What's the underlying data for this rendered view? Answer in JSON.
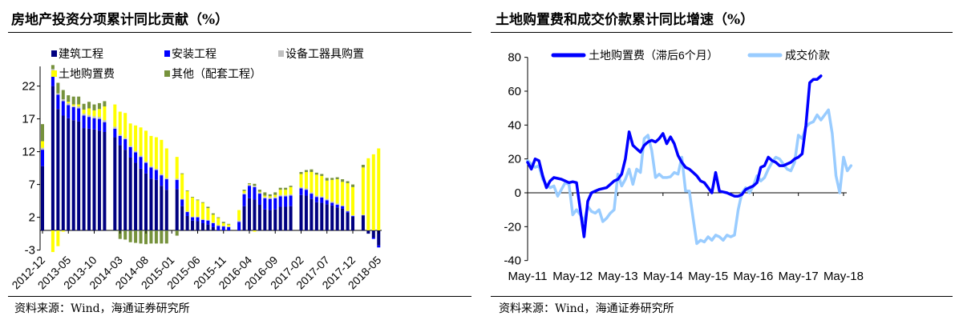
{
  "left": {
    "title": "房地产投资分项累计同比贡献（%）",
    "source": "资料来源：Wind，海通证券研究所"
  },
  "right": {
    "title": "土地购置费和成交价款累计同比增速（%）",
    "source": "资料来源：Wind，海通证券研究所"
  },
  "chart_data": [
    {
      "type": "bar",
      "stacked": true,
      "title": "房地产投资分项累计同比贡献（%）",
      "ylim": [
        -3,
        25
      ],
      "yticks": [
        -3,
        2,
        7,
        12,
        17,
        22
      ],
      "grid": false,
      "legend": "top",
      "xtick_labels": [
        "2012-12",
        "2013-05",
        "2013-10",
        "2014-03",
        "2014-08",
        "2015-01",
        "2015-06",
        "2015-11",
        "2016-04",
        "2016-09",
        "2017-02",
        "2017-07",
        "2017-12",
        "2018-05"
      ],
      "categories": [
        "2012-12",
        "2013-01",
        "2013-02",
        "2013-03",
        "2013-04",
        "2013-05",
        "2013-06",
        "2013-07",
        "2013-08",
        "2013-09",
        "2013-10",
        "2013-11",
        "2013-12",
        "2014-01",
        "2014-02",
        "2014-03",
        "2014-04",
        "2014-05",
        "2014-06",
        "2014-07",
        "2014-08",
        "2014-09",
        "2014-10",
        "2014-11",
        "2014-12",
        "2015-01",
        "2015-02",
        "2015-03",
        "2015-04",
        "2015-05",
        "2015-06",
        "2015-07",
        "2015-08",
        "2015-09",
        "2015-10",
        "2015-11",
        "2015-12",
        "2016-01",
        "2016-02",
        "2016-03",
        "2016-04",
        "2016-05",
        "2016-06",
        "2016-07",
        "2016-08",
        "2016-09",
        "2016-10",
        "2016-11",
        "2016-12",
        "2017-01",
        "2017-02",
        "2017-03",
        "2017-04",
        "2017-05",
        "2017-06",
        "2017-07",
        "2017-08",
        "2017-09",
        "2017-10",
        "2017-11",
        "2017-12",
        "2018-01",
        "2018-02",
        "2018-03",
        "2018-04",
        "2018-05"
      ],
      "series": [
        {
          "name": "建筑工程",
          "color": "#000080",
          "values": [
            9.8,
            null,
            22.0,
            18.5,
            17.5,
            17.1,
            16.8,
            16.6,
            15.6,
            15.5,
            15.4,
            15.2,
            15.0,
            null,
            14.2,
            13.0,
            12.3,
            11.1,
            10.3,
            9.4,
            8.7,
            7.9,
            7.7,
            6.8,
            6.2,
            null,
            6.3,
            3.7,
            2.2,
            1.5,
            1.4,
            1.1,
            0.9,
            0.5,
            0.0,
            0.0,
            0.0,
            null,
            0.0,
            3.7,
            4.9,
            4.7,
            3.9,
            3.2,
            3.1,
            3.2,
            3.6,
            3.6,
            3.7,
            null,
            5.4,
            5.3,
            4.8,
            4.3,
            4.2,
            4.0,
            3.8,
            3.5,
            3.3,
            2.7,
            2.1,
            null,
            2.3,
            -0.5,
            -1.1,
            -2.3
          ]
        },
        {
          "name": "安装工程",
          "color": "#0000FF",
          "values": [
            2.5,
            null,
            2.2,
            2.2,
            2.2,
            2.0,
            2.0,
            2.0,
            1.9,
            1.8,
            1.7,
            1.8,
            1.5,
            null,
            1.3,
            1.4,
            1.6,
            1.6,
            1.6,
            1.8,
            1.6,
            1.7,
            1.5,
            1.6,
            1.6,
            null,
            1.4,
            1.0,
            0.6,
            0.5,
            0.6,
            0.5,
            0.6,
            0.6,
            0.7,
            0.6,
            0.5,
            null,
            1.3,
            1.8,
            1.9,
            1.9,
            1.7,
            1.7,
            1.7,
            1.7,
            1.6,
            1.6,
            1.6,
            null,
            1.0,
            0.9,
            0.8,
            0.8,
            0.8,
            0.6,
            0.4,
            0.4,
            0.4,
            0.2,
            0.1,
            null,
            0.0,
            0.0,
            -0.2,
            -0.3
          ]
        },
        {
          "name": "设备工器具购置",
          "color": "#C0C0C0",
          "values": [
            0.3,
            null,
            0.4,
            0.2,
            0.3,
            0.3,
            0.2,
            0.3,
            0.3,
            0.3,
            0.3,
            0.3,
            0.3,
            null,
            0.3,
            0.2,
            0.2,
            0.2,
            0.2,
            0.2,
            0.2,
            0.2,
            0.2,
            0.2,
            0.2,
            null,
            0.2,
            0.1,
            0.1,
            0.1,
            0.1,
            0.1,
            0.1,
            0.1,
            0.1,
            0.1,
            0.1,
            null,
            0.2,
            0.2,
            0.2,
            0.2,
            0.2,
            0.2,
            0.2,
            0.2,
            0.2,
            0.2,
            0.2,
            null,
            0.2,
            0.2,
            0.2,
            0.2,
            0.2,
            0.2,
            0.2,
            0.2,
            0.1,
            0.1,
            0.1,
            null,
            0.1,
            0.0,
            0.0,
            0.0
          ]
        },
        {
          "name": "土地购置费",
          "color": "#FFFF00",
          "values": [
            1.0,
            null,
            -3.3,
            -2.4,
            -0.2,
            0.2,
            0.2,
            0.3,
            0.6,
            1.0,
            0.9,
            1.2,
            2.1,
            null,
            3.4,
            3.5,
            3.8,
            3.4,
            3.9,
            4.3,
            4.7,
            4.6,
            4.8,
            5.2,
            4.5,
            null,
            3.3,
            3.8,
            3.1,
            2.9,
            2.5,
            2.5,
            1.8,
            1.2,
            1.1,
            0.4,
            0.3,
            null,
            1.6,
            0.3,
            0.1,
            -0.2,
            0.1,
            0.2,
            0.2,
            0.3,
            0.8,
            0.8,
            1.1,
            null,
            2.0,
            2.5,
            3.1,
            3.2,
            3.1,
            2.8,
            3.3,
            3.7,
            3.6,
            4.2,
            4.3,
            null,
            7.2,
            11.0,
            11.6,
            12.5
          ]
        },
        {
          "name": "其他（配套工程）",
          "color": "#76923C",
          "values": [
            2.6,
            null,
            0.6,
            1.6,
            1.4,
            1.0,
            1.2,
            1.2,
            0.9,
            1.0,
            0.9,
            0.9,
            0.8,
            null,
            -0.1,
            -1.3,
            -1.4,
            -1.8,
            -1.9,
            -2.0,
            -2.1,
            -2.0,
            -2.0,
            -2.0,
            -2.0,
            null,
            -0.8,
            0.1,
            0.1,
            0.1,
            0.1,
            0.1,
            0.2,
            0.2,
            0.1,
            0.2,
            0.1,
            null,
            0.0,
            0.2,
            0.1,
            0.3,
            0.3,
            0.5,
            0.3,
            0.4,
            0.3,
            0.3,
            0.2,
            null,
            0.3,
            0.3,
            0.4,
            0.3,
            0.3,
            0.4,
            0.3,
            0.3,
            0.4,
            0.3,
            0.4,
            null,
            0.4,
            0.0,
            0.0,
            0.0
          ]
        }
      ]
    },
    {
      "type": "line",
      "title": "土地购置费和成交价款累计同比增速（%）",
      "ylim": [
        -40,
        80
      ],
      "yticks": [
        -40,
        -20,
        0,
        20,
        40,
        60,
        80
      ],
      "grid": false,
      "legend": "top",
      "x_start": "May-11",
      "x_frequency": "monthly",
      "xtick_labels": [
        "May-11",
        "May-12",
        "May-13",
        "May-14",
        "May-15",
        "May-16",
        "May-17",
        "May-18"
      ],
      "series": [
        {
          "name": "土地购置费（滞后6个月）",
          "color": "#0000FF",
          "values": [
            18,
            14,
            20,
            19,
            10,
            3,
            7,
            9,
            8.5,
            8,
            7,
            6,
            6.5,
            6,
            -10,
            -26,
            -5,
            0,
            1,
            2,
            2.5,
            3,
            5,
            7,
            8,
            11,
            20,
            36,
            28,
            26,
            24,
            28,
            30,
            31,
            30,
            32,
            35,
            29,
            33,
            29,
            22,
            18,
            15,
            14,
            12,
            10,
            7,
            6,
            3,
            0,
            12,
            1,
            0.5,
            0,
            -1,
            -2,
            -2,
            -1,
            2,
            3,
            4,
            6,
            15,
            16,
            21,
            19,
            18,
            16,
            16,
            17,
            18,
            20,
            21,
            23,
            40,
            65,
            67,
            67,
            69
          ]
        },
        {
          "name": "成交价款",
          "color": "#99CCFF",
          "values": [
            19,
            17,
            15,
            16,
            8,
            5,
            3,
            4,
            -2,
            2,
            6,
            5,
            -13,
            -10,
            -13,
            -17,
            -8,
            -11,
            -12,
            -10,
            -17,
            -15,
            -12,
            -10,
            11,
            4,
            8,
            14,
            5,
            14,
            12,
            32,
            34,
            25,
            9,
            11,
            9,
            9,
            9.5,
            12,
            11,
            21,
            1,
            1,
            -15,
            -30,
            -28,
            -29,
            -26,
            -28,
            -25,
            -26,
            -28,
            -25,
            -26,
            -25,
            -10,
            0,
            3,
            0,
            4,
            10,
            7,
            9,
            14,
            18,
            21,
            20,
            17,
            14,
            13,
            18,
            34,
            32,
            39,
            41,
            42,
            46,
            43,
            46,
            49,
            35,
            10,
            0,
            21,
            13,
            16
          ]
        }
      ]
    }
  ]
}
